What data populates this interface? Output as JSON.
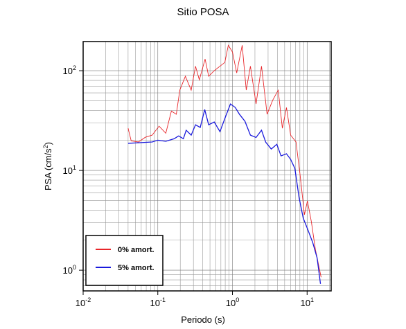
{
  "chart_data": {
    "type": "line",
    "title": "Sitio POSA",
    "xlabel": "Periodo (s)",
    "ylabel": {
      "text": "PSA (cm/s",
      "sup": "2",
      "tail": ")"
    },
    "xlog": true,
    "ylog": true,
    "grid": true,
    "xlim": [
      0.01,
      21
    ],
    "ylim": [
      0.62,
      196
    ],
    "xticks": [
      {
        "value": 0.01,
        "label": "10",
        "sup": "-2"
      },
      {
        "value": 0.1,
        "label": "10",
        "sup": "-1"
      },
      {
        "value": 1,
        "label": "10",
        "sup": "0"
      },
      {
        "value": 10,
        "label": "10",
        "sup": "1"
      }
    ],
    "yticks": [
      {
        "value": 1,
        "label": "10",
        "sup": "0"
      },
      {
        "value": 10,
        "label": "10",
        "sup": "1"
      },
      {
        "value": 100,
        "label": "10",
        "sup": "2"
      }
    ],
    "legend": "bottom-left",
    "series": [
      {
        "name": "0% amort.",
        "color": "#e8262a",
        "x": [
          0.04,
          0.044,
          0.055,
          0.068,
          0.084,
          0.104,
          0.128,
          0.152,
          0.177,
          0.197,
          0.234,
          0.28,
          0.32,
          0.36,
          0.43,
          0.48,
          0.57,
          0.68,
          0.79,
          0.88,
          1.0,
          1.14,
          1.35,
          1.53,
          1.74,
          2.07,
          2.45,
          2.91,
          3.45,
          4.1,
          4.66,
          5.29,
          6.02,
          7.1,
          8.1,
          9.2,
          10.1,
          11.4,
          12.9,
          15.4
        ],
        "values": [
          26.5,
          19.8,
          19.3,
          21.5,
          22.6,
          27.8,
          23.6,
          39.4,
          36.6,
          63.8,
          88,
          63.8,
          111,
          81,
          131,
          88,
          100,
          111,
          121,
          180,
          154,
          95,
          180,
          64,
          111,
          46.4,
          111,
          36.6,
          50.4,
          63.8,
          26.5,
          42.7,
          22.6,
          19.3,
          8.67,
          3.6,
          4.95,
          3.06,
          1.62,
          0.85
        ]
      },
      {
        "name": "5% amort.",
        "color": "#1a1adc",
        "x": [
          0.04,
          0.084,
          0.1,
          0.128,
          0.166,
          0.19,
          0.22,
          0.24,
          0.28,
          0.32,
          0.37,
          0.425,
          0.48,
          0.57,
          0.68,
          0.81,
          0.94,
          1.09,
          1.24,
          1.47,
          1.74,
          2.07,
          2.45,
          2.79,
          3.31,
          3.93,
          4.47,
          5.29,
          6.02,
          6.85,
          7.8,
          8.87,
          10.1,
          11.9,
          13.6,
          15.1
        ],
        "values": [
          18.7,
          19.3,
          20.1,
          19.6,
          20.8,
          22.2,
          20.8,
          25.3,
          22.6,
          28.7,
          27,
          40.8,
          28.7,
          30.6,
          24.5,
          34.8,
          46.4,
          42.8,
          36.6,
          31.1,
          22.6,
          21.4,
          25.3,
          19.2,
          16.4,
          18.3,
          14.0,
          14.7,
          12.9,
          10.5,
          5.36,
          3.32,
          2.61,
          1.89,
          1.33,
          0.73
        ]
      }
    ]
  }
}
